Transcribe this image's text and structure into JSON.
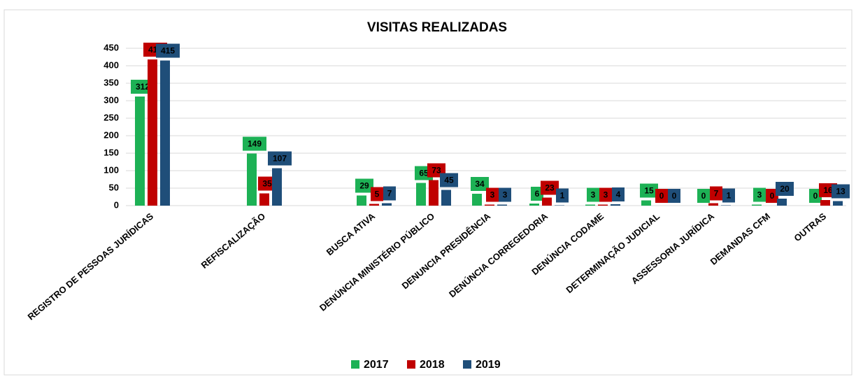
{
  "chart_data": {
    "type": "bar",
    "title": "VISITAS REALIZADAS",
    "categories": [
      "REGISTRO DE PESSOAS JURÍDICAS",
      "REFISCALIZAÇÃO",
      "BUSCA ATIVA",
      "DENÚNCIA MINISTÉRIO PÚBLICO",
      "DENUNCIA PRESIDÊNCIA",
      "DENÚNCIA CORREGEDORIA",
      "DENÚNCIA CODAME",
      "DETERMINAÇÃO JUDICIAL",
      "ASSESSORIA JURÍDICA",
      "DEMANDAS CFM",
      "OUTRAS"
    ],
    "series": [
      {
        "name": "2017",
        "color": "#1db155",
        "values": [
          312,
          149,
          29,
          65,
          34,
          6,
          3,
          15,
          0,
          3,
          0
        ]
      },
      {
        "name": "2018",
        "color": "#c00000",
        "values": [
          418,
          35,
          5,
          73,
          3,
          23,
          3,
          0,
          7,
          0,
          16
        ]
      },
      {
        "name": "2019",
        "color": "#1f4e79",
        "values": [
          415,
          107,
          7,
          45,
          3,
          1,
          4,
          0,
          1,
          20,
          13
        ]
      }
    ],
    "ylim": [
      0,
      450
    ],
    "yticks": [
      0,
      50,
      100,
      150,
      200,
      250,
      300,
      350,
      400,
      450
    ],
    "grid": true,
    "legend": "bottom"
  }
}
